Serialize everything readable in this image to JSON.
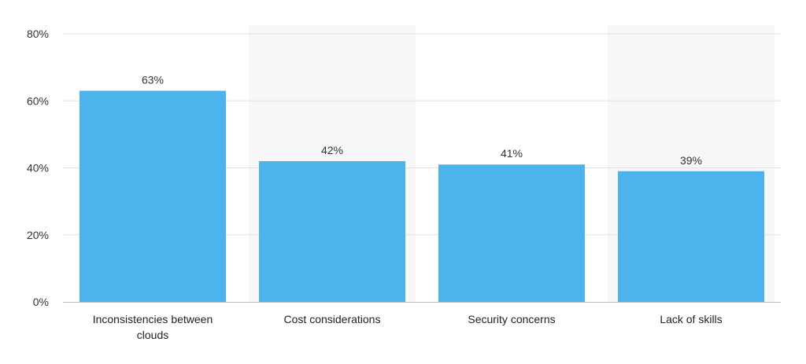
{
  "chart_data": {
    "type": "bar",
    "categories": [
      [
        "Inconsistencies between",
        "clouds"
      ],
      [
        "Cost considerations"
      ],
      [
        "Security concerns"
      ],
      [
        "Lack of skills"
      ]
    ],
    "values": [
      63,
      42,
      41,
      39
    ],
    "data_labels": [
      "63%",
      "42%",
      "41%",
      "39%"
    ],
    "y_ticks": [
      0,
      20,
      40,
      60,
      80
    ],
    "y_tick_labels": [
      "0%",
      "20%",
      "40%",
      "60%",
      "80%"
    ],
    "ylim": [
      0,
      80
    ],
    "grid": true,
    "alternate_shading": true,
    "colors": {
      "bar": "#4db3ed",
      "shade": "#f7f7f7",
      "grid": "#e2e2e2",
      "axis": "#bdbdbd"
    }
  }
}
